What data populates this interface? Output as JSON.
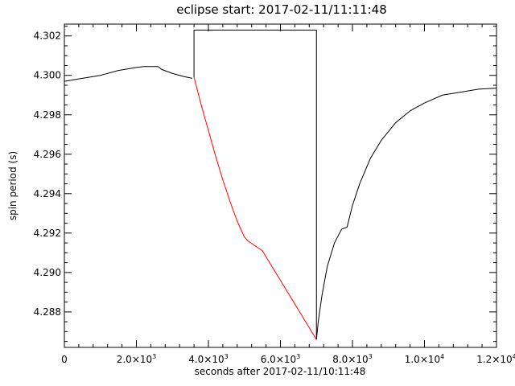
{
  "chart_data": {
    "type": "line",
    "title": "eclipse start: 2017-02-11/11:11:48",
    "xlabel": "seconds after 2017-02-11/10:11:48",
    "ylabel": "spin period (s)",
    "xlim": [
      0,
      12000
    ],
    "ylim": [
      4.2862,
      4.3026
    ],
    "x_ticks": [
      {
        "value": 0,
        "mant": "0",
        "exp": ""
      },
      {
        "value": 2000,
        "mant": "2.0×10",
        "exp": "3"
      },
      {
        "value": 4000,
        "mant": "4.0×10",
        "exp": "3"
      },
      {
        "value": 6000,
        "mant": "6.0×10",
        "exp": "3"
      },
      {
        "value": 8000,
        "mant": "8.0×10",
        "exp": "3"
      },
      {
        "value": 10000,
        "mant": "1.0×10",
        "exp": "4"
      },
      {
        "value": 12000,
        "mant": "1.2×10",
        "exp": "4"
      }
    ],
    "y_ticks": [
      "4.288",
      "4.290",
      "4.292",
      "4.294",
      "4.296",
      "4.298",
      "4.300",
      "4.302"
    ],
    "grid": false,
    "series": [
      {
        "color": "#000000",
        "points": [
          [
            0,
            4.2997
          ],
          [
            500,
            4.29985
          ],
          [
            1000,
            4.3
          ],
          [
            1500,
            4.30025
          ],
          [
            2000,
            4.3004
          ],
          [
            2200,
            4.30045
          ],
          [
            2600,
            4.30045
          ],
          [
            2700,
            4.3003
          ],
          [
            3000,
            4.3001
          ],
          [
            3300,
            4.29995
          ],
          [
            3550,
            4.29985
          ]
        ]
      },
      {
        "color": "#ff0000",
        "points": [
          [
            3600,
            4.2999
          ],
          [
            3800,
            4.2985
          ],
          [
            4000,
            4.2972
          ],
          [
            4200,
            4.2959
          ],
          [
            4400,
            4.2947
          ],
          [
            4600,
            4.2936
          ],
          [
            4800,
            4.2926
          ],
          [
            5000,
            4.2918
          ],
          [
            5100,
            4.2916
          ],
          [
            5500,
            4.2911
          ],
          [
            5800,
            4.2902
          ],
          [
            6100,
            4.2893
          ],
          [
            6400,
            4.2884
          ],
          [
            6700,
            4.2875
          ],
          [
            6900,
            4.2869
          ],
          [
            7000,
            4.2866
          ]
        ]
      },
      {
        "color": "#000000",
        "points": [
          [
            3600,
            4.2999
          ],
          [
            3600,
            4.3023
          ],
          [
            7000,
            4.3023
          ],
          [
            7000,
            4.2866
          ]
        ]
      },
      {
        "color": "#000000",
        "points": [
          [
            7000,
            4.2866
          ],
          [
            7050,
            4.2875
          ],
          [
            7150,
            4.2888
          ],
          [
            7300,
            4.2903
          ],
          [
            7500,
            4.2915
          ],
          [
            7700,
            4.2922
          ],
          [
            7850,
            4.2923
          ],
          [
            8000,
            4.2934
          ],
          [
            8200,
            4.2945
          ],
          [
            8500,
            4.2958
          ],
          [
            8800,
            4.2967
          ],
          [
            9200,
            4.2976
          ],
          [
            9600,
            4.2982
          ],
          [
            10000,
            4.2986
          ],
          [
            10500,
            4.299
          ],
          [
            11000,
            4.29915
          ],
          [
            11500,
            4.2993
          ],
          [
            12000,
            4.29935
          ]
        ]
      }
    ]
  }
}
